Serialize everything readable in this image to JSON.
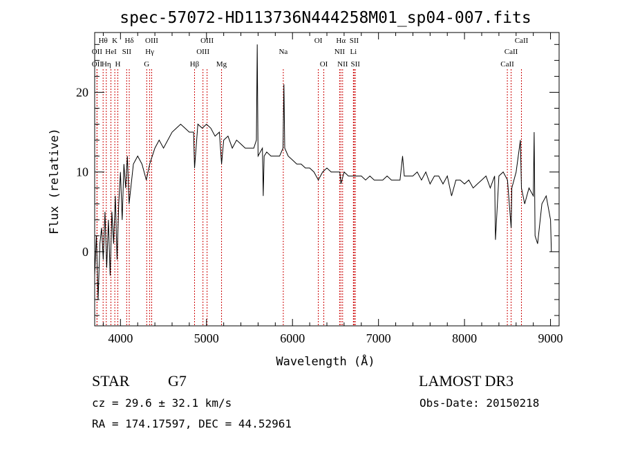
{
  "chart_data": {
    "type": "line",
    "title": "spec-57072-HD113736N444258M01_sp04-007.fits",
    "xlabel": "Wavelength (Å)",
    "ylabel": "Flux (relative)",
    "xlim": [
      3700,
      9100
    ],
    "ylim": [
      -9.3,
      27.5
    ],
    "x_ticks": [
      4000,
      5000,
      6000,
      7000,
      8000,
      9000
    ],
    "y_ticks": [
      0,
      10,
      20
    ],
    "grid": false,
    "series": [
      {
        "name": "spectrum",
        "x": [
          3700,
          3720,
          3740,
          3760,
          3780,
          3800,
          3820,
          3840,
          3860,
          3880,
          3900,
          3920,
          3940,
          3960,
          3980,
          4000,
          4020,
          4040,
          4060,
          4080,
          4100,
          4150,
          4200,
          4250,
          4300,
          4340,
          4400,
          4450,
          4500,
          4550,
          4600,
          4650,
          4700,
          4750,
          4800,
          4850,
          4861,
          4900,
          4950,
          5000,
          5050,
          5100,
          5150,
          5175,
          5200,
          5250,
          5300,
          5350,
          5400,
          5450,
          5500,
          5550,
          5580,
          5590,
          5600,
          5650,
          5660,
          5670,
          5700,
          5750,
          5800,
          5850,
          5890,
          5900,
          5910,
          5950,
          6000,
          6050,
          6100,
          6150,
          6200,
          6250,
          6300,
          6350,
          6400,
          6450,
          6500,
          6550,
          6563,
          6600,
          6650,
          6700,
          6750,
          6800,
          6850,
          6900,
          6950,
          7000,
          7050,
          7100,
          7150,
          7200,
          7250,
          7280,
          7300,
          7350,
          7400,
          7450,
          7500,
          7550,
          7600,
          7650,
          7700,
          7750,
          7800,
          7850,
          7900,
          7950,
          8000,
          8050,
          8100,
          8150,
          8200,
          8250,
          8300,
          8350,
          8360,
          8400,
          8450,
          8500,
          8542,
          8550,
          8600,
          8650,
          8662,
          8700,
          8750,
          8800,
          8810,
          8820,
          8850,
          8900,
          8950,
          9000,
          9010
        ],
        "values": [
          -3,
          2,
          -6,
          1,
          3,
          -1,
          5,
          -2,
          4,
          -3,
          5,
          1,
          7,
          -1,
          6,
          10,
          4,
          11,
          8,
          12,
          6,
          11,
          12,
          11,
          9,
          11,
          13,
          14,
          13,
          14,
          15,
          15.5,
          16,
          15.5,
          15,
          15,
          10.5,
          16,
          15.5,
          16,
          15.5,
          14.5,
          15,
          11,
          14,
          14.5,
          13,
          14,
          13.5,
          13,
          13,
          13,
          14,
          26,
          12,
          13,
          7,
          12,
          12.5,
          12,
          12,
          12,
          13,
          21,
          13,
          12,
          11.5,
          11,
          11,
          10.5,
          10.5,
          10,
          9,
          10,
          10.5,
          10,
          10,
          10,
          8.5,
          10,
          9.5,
          9.5,
          9.5,
          9.5,
          9,
          9.5,
          9,
          9,
          9,
          9.5,
          9,
          9,
          9,
          12,
          9.5,
          9.5,
          9.5,
          10,
          9,
          10,
          8.5,
          9.5,
          9.5,
          8.5,
          9.5,
          7,
          9,
          9,
          8.5,
          9,
          8,
          8.5,
          9,
          9.5,
          8,
          9.5,
          1.5,
          9.5,
          10,
          9,
          3,
          8,
          10,
          14,
          8,
          6,
          8,
          7,
          15,
          2,
          1,
          6,
          7,
          4,
          0
        ]
      }
    ],
    "line_markers": [
      {
        "label": "Hθ",
        "x": 3798,
        "row": 1
      },
      {
        "label": "OII",
        "x": 3727,
        "row": 2
      },
      {
        "label": "OII",
        "x": 3727,
        "row": 3
      },
      {
        "label": "Hη",
        "x": 3835,
        "row": 3
      },
      {
        "label": "K",
        "x": 3934,
        "row": 1
      },
      {
        "label": "HeI",
        "x": 3889,
        "row": 2
      },
      {
        "label": "H",
        "x": 3969,
        "row": 3
      },
      {
        "label": "SII",
        "x": 4072,
        "row": 2
      },
      {
        "label": "Hδ",
        "x": 4102,
        "row": 1
      },
      {
        "label": "OIII",
        "x": 4363,
        "row": 1
      },
      {
        "label": "Hγ",
        "x": 4340,
        "row": 2
      },
      {
        "label": "G",
        "x": 4305,
        "row": 3
      },
      {
        "label": "Hβ",
        "x": 4861,
        "row": 3
      },
      {
        "label": "OIII",
        "x": 5007,
        "row": 1
      },
      {
        "label": "OIII",
        "x": 4959,
        "row": 2
      },
      {
        "label": "Mg",
        "x": 5175,
        "row": 3
      },
      {
        "label": "Na",
        "x": 5893,
        "row": 2
      },
      {
        "label": "OI",
        "x": 6300,
        "row": 1
      },
      {
        "label": "OI",
        "x": 6364,
        "row": 3
      },
      {
        "label": "Hα",
        "x": 6563,
        "row": 1
      },
      {
        "label": "NII",
        "x": 6548,
        "row": 2
      },
      {
        "label": "NII",
        "x": 6583,
        "row": 3
      },
      {
        "label": "SII",
        "x": 6717,
        "row": 1
      },
      {
        "label": "Li",
        "x": 6708,
        "row": 2
      },
      {
        "label": "SII",
        "x": 6731,
        "row": 3
      },
      {
        "label": "CaII",
        "x": 8662,
        "row": 1
      },
      {
        "label": "CaII",
        "x": 8542,
        "row": 2
      },
      {
        "label": "CaII",
        "x": 8498,
        "row": 3
      }
    ],
    "line_marker_color": "#cc0000"
  },
  "info": {
    "object_type": "STAR",
    "subclass": "G7",
    "survey": "LAMOST DR3",
    "redshift": "cz = 29.6 ± 32.1 km/s",
    "coords": "RA = 174.17597, DEC =  44.52961",
    "obs_date": "Obs-Date: 20150218"
  }
}
